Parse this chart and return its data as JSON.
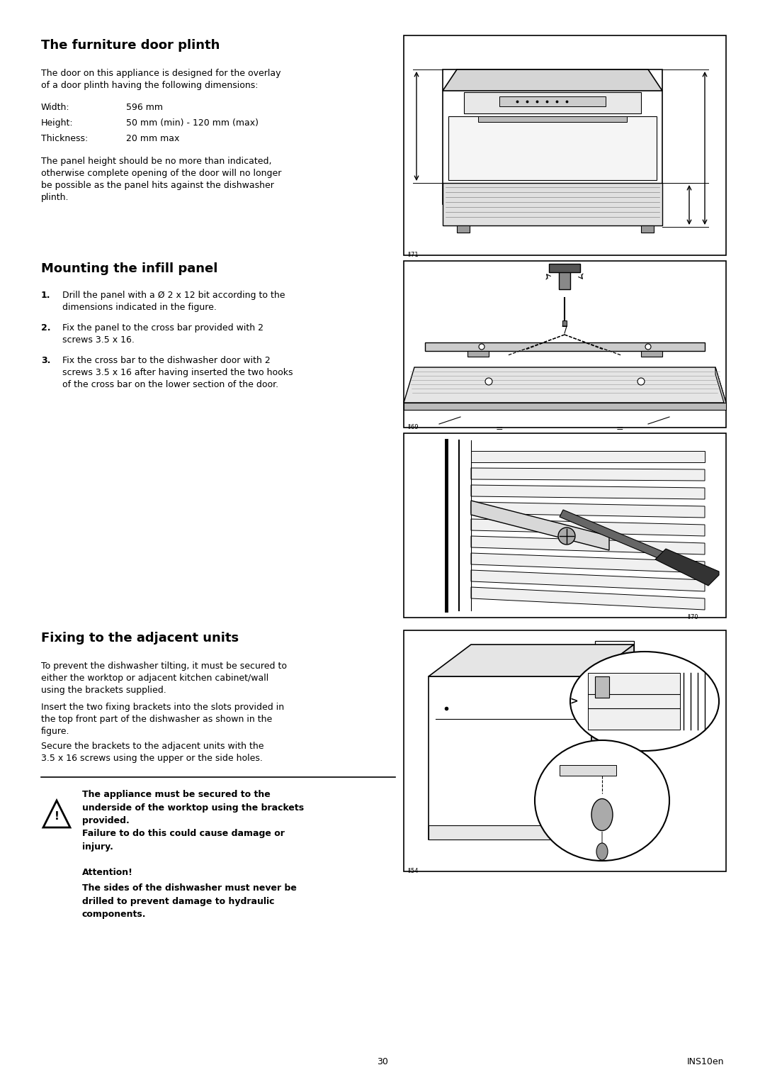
{
  "page_width": 10.8,
  "page_height": 15.26,
  "bg_color": "#ffffff",
  "section1_title": "The furniture door plinth",
  "section1_body1": "The door on this appliance is designed for the overlay\nof a door plinth having the following dimensions:",
  "spec_rows": [
    [
      "Width:",
      "596 mm"
    ],
    [
      "Height:",
      "50 mm (min) - 120 mm (max)"
    ],
    [
      "Thickness:",
      "20 mm max"
    ]
  ],
  "section1_body2": "The panel height should be no more than indicated,\notherwise complete opening of the door will no longer\nbe possible as the panel hits against the dishwasher\nplinth.",
  "section2_title": "Mounting the infill panel",
  "section2_items": [
    "Drill the panel with a Ø 2 x 12 bit according to the\ndimensions indicated in the figure.",
    "Fix the panel to the cross bar provided with 2\nscrews 3.5 x 16.",
    "Fix the cross bar to the dishwasher door with 2\nscrews 3.5 x 16 after having inserted the two hooks\nof the cross bar on the lower section of the door."
  ],
  "section3_title": "Fixing to the adjacent units",
  "section3_body1": "To prevent the dishwasher tilting, it must be secured to\neither the worktop or adjacent kitchen cabinet/wall\nusing the brackets supplied.",
  "section3_body2": "Insert the two fixing brackets into the slots provided in\nthe top front part of the dishwasher as shown in the\nfigure.",
  "section3_body3": "Secure the brackets to the adjacent units with the\n3.5 x 16 screws using the upper or the side holes.",
  "warning_bold": "The appliance must be secured to the\nunderside of the worktop using the brackets\nprovided.\nFailure to do this could cause damage or\ninjury.",
  "attention_head": "Attention!",
  "attention_body": "The sides of the dishwasher must never be\ndrilled to prevent damage to hydraulic\ncomponents.",
  "page_number": "30",
  "footer_right": "INS10en",
  "text_color": "#000000",
  "title_fs": 13,
  "body_fs": 9,
  "spec_fs": 9,
  "warn_fs": 9
}
